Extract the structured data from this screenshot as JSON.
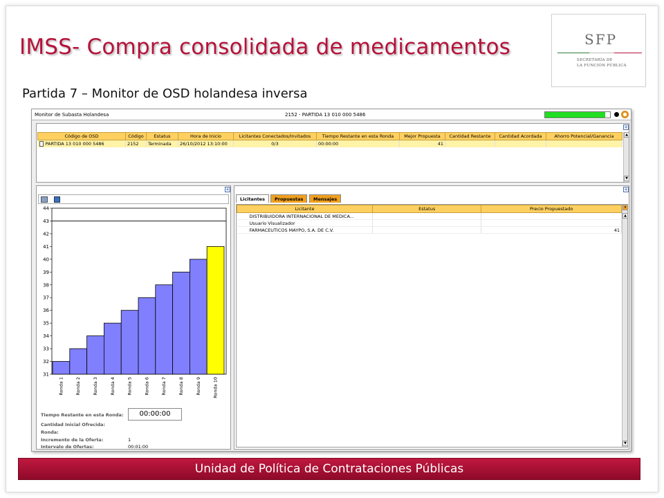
{
  "slide": {
    "title": "IMSS- Compra consolidada de medicamentos",
    "subtitle": "Partida 7 – Monitor de OSD holandesa inversa",
    "footer": "Unidad de Política de Contrataciones Públicas",
    "logo": {
      "name": "SFP",
      "line1": "SECRETARÍA DE",
      "line2": "LA FUNCIÓN PÚBLICA"
    }
  },
  "app": {
    "window_title": "Monitor de Subasta Holandesa",
    "center_title": "2152 - PARTIDA 13 010 000 5486",
    "progress_fraction": 0.93,
    "colors": {
      "header": "#ffd060",
      "tab_orange": "#f0a020",
      "selected_row": "#fff3a8",
      "progress": "#22dd22"
    },
    "top_table": {
      "headers": [
        "Código de OSD",
        "Código",
        "Estatus",
        "Hora de Inicio",
        "Licitantes Conectados/Invitados",
        "Tiempo Restante en esta Ronda",
        "Mejor Propuesta",
        "Cantidad Restante",
        "Cantidad Acordada",
        "Ahorro Potencial/Ganancia"
      ],
      "rows": [
        [
          "PARTIDA 13 010 000 5486",
          "2152",
          "Terminada",
          "26/10/2012 13:10:00",
          "0/3",
          "00:00:00",
          "41",
          "",
          "",
          ""
        ]
      ]
    },
    "tabs": [
      "Licitantes",
      "Propuestas",
      "Mensajes"
    ],
    "bidders_table": {
      "headers": [
        "Licitante",
        "Estatus",
        "Precio Propuestado"
      ],
      "rows": [
        [
          "DISTRIBUIDORA INTERNACIONAL DE MEDICA...",
          "",
          ""
        ],
        [
          "Usuario Visualizador",
          "",
          ""
        ],
        [
          "FARMACEUTICOS MAYPO, S.A. DE C.V.",
          "",
          "41"
        ]
      ]
    },
    "info": {
      "timer_label": "Tiempo Restante en esta Ronda:",
      "timer_value": "00:00:00",
      "initial_qty_label": "Cantidad Inicial Ofrecida:",
      "round_label": "Ronda:",
      "increment_label": "Incremento de la Oferta:",
      "increment_value": "1",
      "interval_label": "Intervalo de Ofertas:",
      "interval_value": "00:01:00"
    }
  },
  "chart_data": {
    "type": "bar",
    "categories": [
      "Ronda 1",
      "Ronda 2",
      "Ronda 3",
      "Ronda 4",
      "Ronda 5",
      "Ronda 6",
      "Ronda 7",
      "Ronda 8",
      "Ronda 9",
      "Ronda 10"
    ],
    "values": [
      32,
      33,
      34,
      35,
      36,
      37,
      38,
      39,
      40,
      41
    ],
    "colors": [
      "#8080ff",
      "#8080ff",
      "#8080ff",
      "#8080ff",
      "#8080ff",
      "#8080ff",
      "#8080ff",
      "#8080ff",
      "#8080ff",
      "#ffff00"
    ],
    "ylim": [
      31,
      44
    ],
    "yticks": [
      31,
      32,
      33,
      34,
      35,
      36,
      37,
      38,
      39,
      40,
      41,
      42,
      43,
      44
    ],
    "reference_line": 43,
    "grid": false,
    "title": "",
    "xlabel": "",
    "ylabel": ""
  }
}
